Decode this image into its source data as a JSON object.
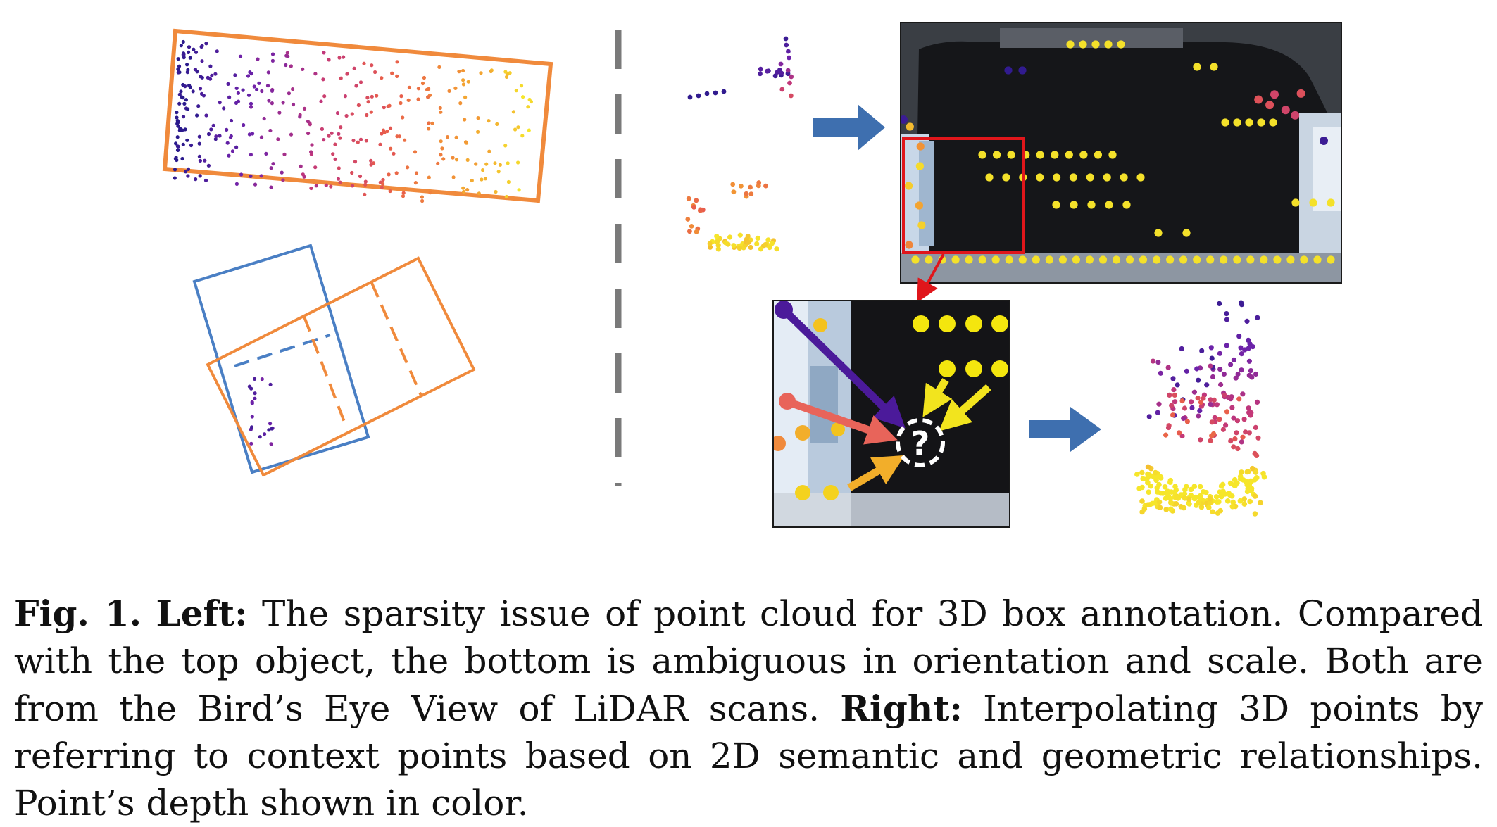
{
  "figure": {
    "question_mark": "?",
    "colors": {
      "box_orange": "#F08A3C",
      "box_blue": "#4A7FC4",
      "divider": "#7A7A7A",
      "arrow_blue": "#3E6FAF",
      "highlight_red": "#E0161B",
      "depth_near": "#2A1A8C",
      "depth_mid": "#C2377A",
      "depth_far": "#F6E62A"
    },
    "icons": [
      "dashed-divider",
      "flow-arrow-icon",
      "question-mark-icon"
    ]
  },
  "caption": {
    "fig_label": "Fig. 1.",
    "left_label": "Left:",
    "left_text": "The sparsity issue of point cloud for 3D box annotation. Compared with the top object, the bottom is ambiguous in orientation and scale. Both are from the Bird’s Eye View of LiDAR scans.",
    "right_label": "Right:",
    "right_text": "Interpolating 3D points by referring to context points based on 2D semantic and geometric relationships. Point’s depth shown in color."
  }
}
